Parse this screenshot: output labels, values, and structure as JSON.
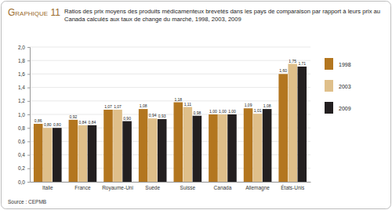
{
  "chart_data": {
    "type": "bar",
    "title": "Graphique 11",
    "subtitle": "Ratios des prix moyens des produits médicamenteux brevetés dans les pays de comparaison par rapport à leurs prix au Canada calculés aux taux de change du marché, 1998, 2003, 2009",
    "annotations": [
      "Source : CEPMB"
    ],
    "categories": [
      "Italie",
      "France",
      "Royaume-Uni",
      "Suède",
      "Suisse",
      "Canada",
      "Allemagne",
      "États-Unis"
    ],
    "series": [
      {
        "name": "1998",
        "color": "#b3761f",
        "values": [
          0.86,
          0.92,
          1.07,
          1.08,
          1.18,
          1.0,
          1.09,
          1.6
        ],
        "value_labels": [
          "0,86",
          "0,92",
          "1,07",
          "1,08",
          "1,18",
          "1,00",
          "1,09",
          "1,60"
        ]
      },
      {
        "name": "2003",
        "color": "#dfbf8a",
        "values": [
          0.8,
          0.84,
          1.07,
          0.94,
          1.11,
          1.0,
          1.01,
          1.75
        ],
        "value_labels": [
          "0,80",
          "0,84",
          "1,07",
          "0,94",
          "1,11",
          "1,00",
          "1,01",
          "1,75"
        ]
      },
      {
        "name": "2009",
        "color": "#231f20",
        "values": [
          0.8,
          0.84,
          0.9,
          0.93,
          0.98,
          1.0,
          1.08,
          1.71
        ],
        "value_labels": [
          "0,80",
          "0,84",
          "0,90",
          "0,93",
          "0,98",
          "1,00",
          "1,08",
          "1,71"
        ]
      }
    ],
    "ylim": [
      0,
      2
    ],
    "yticks": [
      {
        "value": 0,
        "label": "0,0"
      },
      {
        "value": 0.2,
        "label": "0,2"
      },
      {
        "value": 0.4,
        "label": "0,4"
      },
      {
        "value": 0.6,
        "label": "0,6"
      },
      {
        "value": 0.8,
        "label": "0,8"
      },
      {
        "value": 1,
        "label": "1,0"
      },
      {
        "value": 1.2,
        "label": "1,2"
      },
      {
        "value": 1.4,
        "label": "1,4"
      },
      {
        "value": 1.6,
        "label": "1,6"
      },
      {
        "value": 1.8,
        "label": "1,8"
      },
      {
        "value": 2,
        "label": "2,0"
      }
    ],
    "grid": true,
    "legend": "upper right",
    "data_labels": true
  }
}
